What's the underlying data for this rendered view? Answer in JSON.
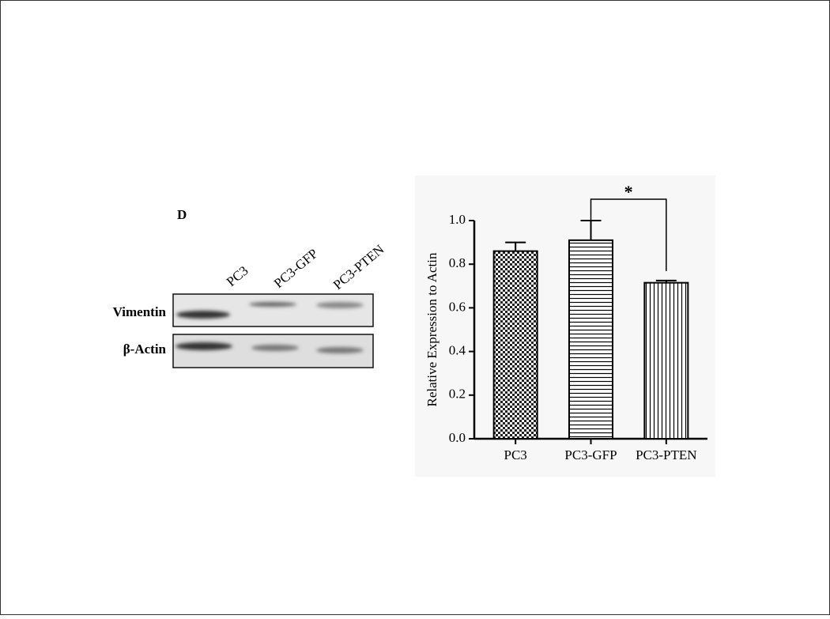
{
  "panel_label": "D",
  "blot": {
    "lanes": [
      "PC3",
      "PC3-GFP",
      "PC3-PTEN"
    ],
    "rows": [
      "Vimentin",
      "β-Actin"
    ]
  },
  "chart_data": {
    "type": "bar",
    "y_label": "Relative Expression to Actin",
    "categories": [
      "PC3",
      "PC3-GFP",
      "PC3-PTEN"
    ],
    "values": [
      0.86,
      0.91,
      0.715
    ],
    "errors": [
      0.04,
      0.09,
      0.01
    ],
    "patterns": [
      "crosshatch",
      "horizontal",
      "vertical"
    ],
    "color": "#000000",
    "ylim": [
      0,
      1.0
    ],
    "yticks": [
      {
        "value": 0,
        "label": "0.0"
      },
      0.2,
      0.4,
      0.6,
      0.8,
      {
        "value": 1.0,
        "label": "1.0"
      }
    ],
    "annotation": "*"
  }
}
